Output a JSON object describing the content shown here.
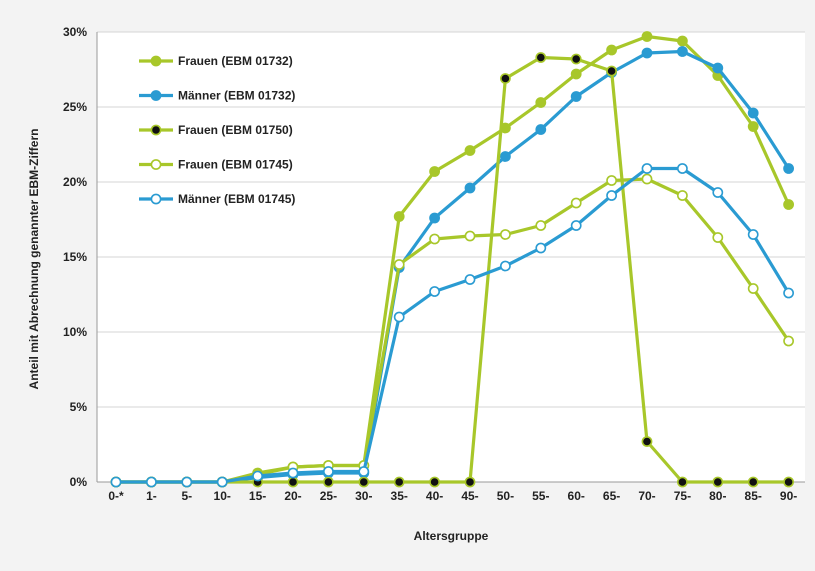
{
  "chart_data": {
    "type": "line",
    "title": "",
    "xlabel": "Altersgruppe",
    "ylabel": "Anteil mit Abrechnung genannter EBM-Ziffern",
    "ylim": [
      0,
      30
    ],
    "y_ticks": [
      0,
      5,
      10,
      15,
      20,
      25,
      30
    ],
    "y_tick_labels": [
      "0%",
      "5%",
      "10%",
      "15%",
      "20%",
      "25%",
      "30%"
    ],
    "grid": true,
    "legend_position": "top-left",
    "categories": [
      "0-*",
      "1-",
      "5-",
      "10-",
      "15-",
      "20-",
      "25-",
      "30-",
      "35-",
      "40-",
      "45-",
      "50-",
      "55-",
      "60-",
      "65-",
      "70-",
      "75-",
      "80-",
      "85-",
      "90-"
    ],
    "series": [
      {
        "name": "Frauen (EBM 01732)",
        "color": "#a8c72a",
        "marker": "filled",
        "values": [
          0,
          0,
          0,
          0,
          0.6,
          1.0,
          1.1,
          1.1,
          17.7,
          20.7,
          22.1,
          23.6,
          25.3,
          27.2,
          28.8,
          29.7,
          29.4,
          27.1,
          23.7,
          18.5
        ]
      },
      {
        "name": "Männer (EBM 01732)",
        "color": "#2a9bd2",
        "marker": "filled",
        "values": [
          0,
          0,
          0,
          0,
          0.3,
          0.5,
          0.6,
          0.6,
          14.3,
          17.6,
          19.6,
          21.7,
          23.5,
          25.7,
          27.3,
          28.6,
          28.7,
          27.6,
          24.6,
          20.9
        ]
      },
      {
        "name": "Frauen (EBM 01750)",
        "color": "#a8c72a",
        "marker": "black",
        "values": [
          0,
          0,
          0,
          0,
          0,
          0,
          0,
          0,
          0,
          0,
          0,
          26.9,
          28.3,
          28.2,
          27.4,
          2.7,
          0,
          0,
          0,
          0
        ]
      },
      {
        "name": "Frauen (EBM 01745)",
        "color": "#a8c72a",
        "marker": "open",
        "values": [
          0,
          0,
          0,
          0,
          0.5,
          1.0,
          1.1,
          1.1,
          14.5,
          16.2,
          16.4,
          16.5,
          17.1,
          18.6,
          20.1,
          20.2,
          19.1,
          16.3,
          12.9,
          9.4
        ]
      },
      {
        "name": "Männer (EBM 01745)",
        "color": "#2a9bd2",
        "marker": "open",
        "values": [
          0,
          0,
          0,
          0,
          0.4,
          0.6,
          0.7,
          0.7,
          11.0,
          12.7,
          13.5,
          14.4,
          15.6,
          17.1,
          19.1,
          20.9,
          20.9,
          19.3,
          16.5,
          12.6
        ]
      }
    ]
  }
}
